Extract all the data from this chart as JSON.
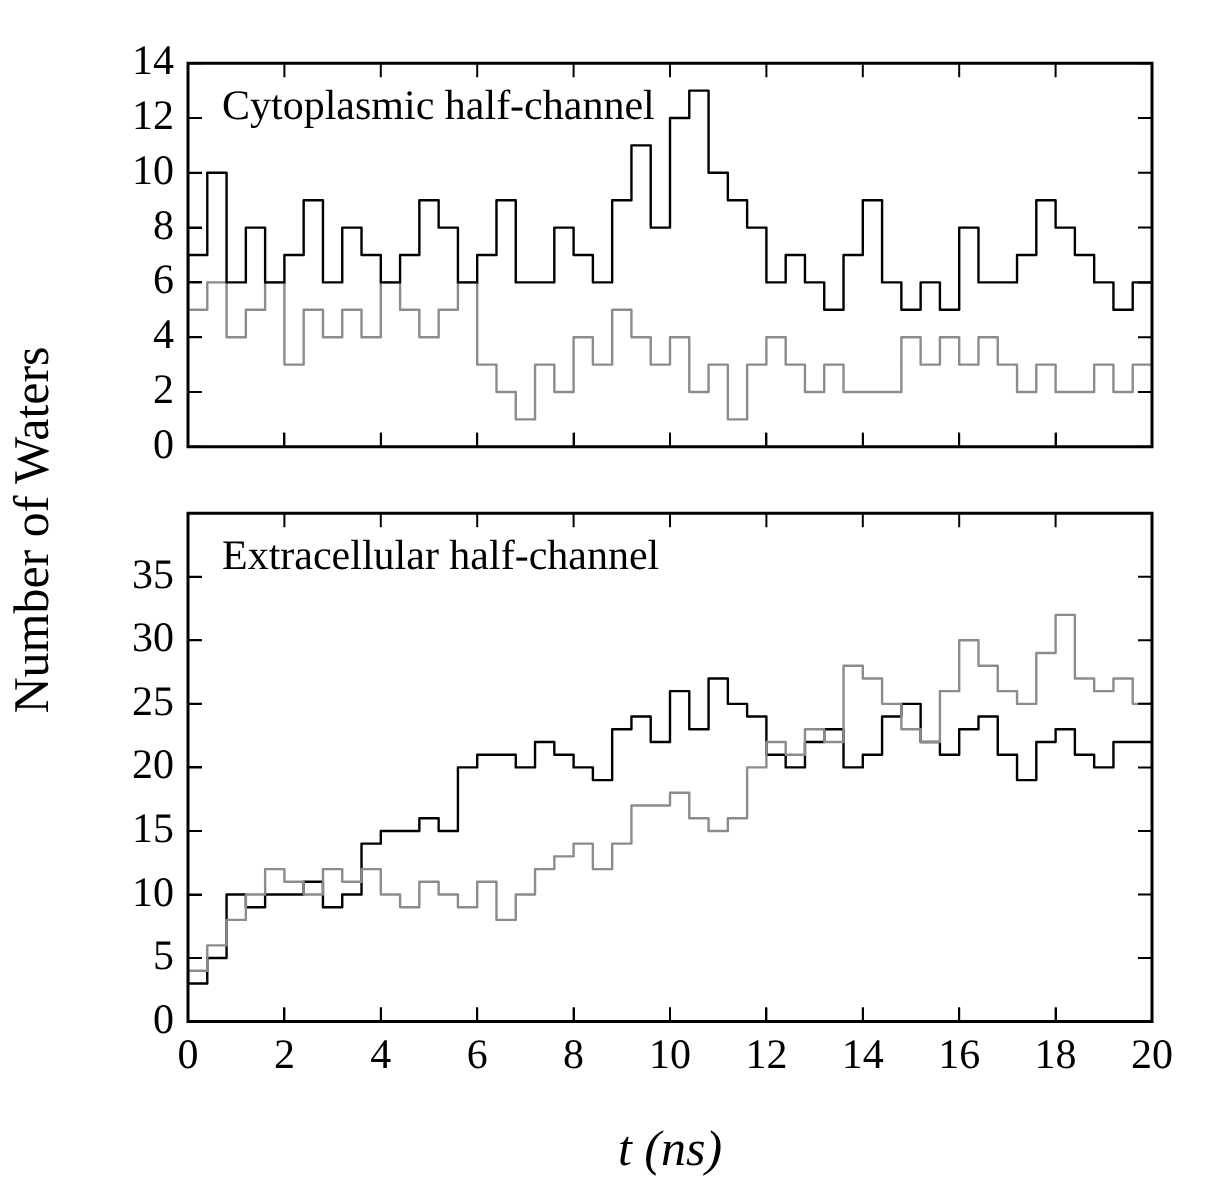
{
  "chart_data": [
    {
      "type": "step",
      "ylabel": "Number of Waters",
      "annotations": [
        "Cytoplasmic half-channel"
      ],
      "x": [
        0,
        0.4,
        0.8,
        1.2,
        1.6,
        2,
        2.4,
        2.8,
        3.2,
        3.6,
        4,
        4.4,
        4.8,
        5.2,
        5.6,
        6,
        6.4,
        6.8,
        7.2,
        7.6,
        8,
        8.4,
        8.8,
        9.2,
        9.6,
        10,
        10.4,
        10.8,
        11.2,
        11.6,
        12,
        12.4,
        12.8,
        13.2,
        13.6,
        14,
        14.4,
        14.8,
        15.2,
        15.6,
        16,
        16.4,
        16.8,
        17.2,
        17.6,
        18,
        18.4,
        18.8,
        19.2,
        19.6,
        20
      ],
      "series": [
        {
          "color": "#000000",
          "values": [
            6,
            7,
            10,
            6,
            8,
            6,
            7,
            9,
            6,
            8,
            7,
            6,
            7,
            9,
            8,
            6,
            7,
            9,
            6,
            6,
            8,
            7,
            6,
            9,
            11,
            8,
            12,
            13,
            10,
            9,
            8,
            6,
            7,
            6,
            5,
            7,
            9,
            6,
            5,
            6,
            5,
            8,
            6,
            6,
            7,
            9,
            8,
            7,
            6,
            5,
            6
          ]
        },
        {
          "color": "#8c8c8c",
          "values": [
            7,
            5,
            6,
            4,
            5,
            6,
            3,
            5,
            4,
            5,
            4,
            6,
            5,
            4,
            5,
            6,
            3,
            2,
            1,
            3,
            2,
            4,
            3,
            5,
            4,
            3,
            4,
            2,
            3,
            1,
            3,
            4,
            3,
            2,
            3,
            2,
            2,
            2,
            4,
            3,
            4,
            3,
            4,
            3,
            2,
            3,
            2,
            2,
            3,
            2,
            3
          ]
        }
      ],
      "xlim": [
        0,
        20
      ],
      "xticks": [
        0,
        2,
        4,
        6,
        8,
        10,
        12,
        14,
        16,
        18,
        20
      ],
      "ylim": [
        0,
        14
      ],
      "yticks": [
        0,
        2,
        4,
        6,
        8,
        10,
        12,
        14
      ],
      "tick_labels": "y",
      "grid": false,
      "legend": false
    },
    {
      "type": "step",
      "xlabel": "t (ns)",
      "annotations": [
        "Extracellular half-channel"
      ],
      "x": [
        0,
        0.4,
        0.8,
        1.2,
        1.6,
        2,
        2.4,
        2.8,
        3.2,
        3.6,
        4,
        4.4,
        4.8,
        5.2,
        5.6,
        6,
        6.4,
        6.8,
        7.2,
        7.6,
        8,
        8.4,
        8.8,
        9.2,
        9.6,
        10,
        10.4,
        10.8,
        11.2,
        11.6,
        12,
        12.4,
        12.8,
        13.2,
        13.6,
        14,
        14.4,
        14.8,
        15.2,
        15.6,
        16,
        16.4,
        16.8,
        17.2,
        17.6,
        18,
        18.4,
        18.8,
        19.2,
        19.6,
        20
      ],
      "series": [
        {
          "color": "#8c8c8c",
          "values": [
            4,
            4,
            6,
            8,
            10,
            12,
            11,
            10,
            12,
            11,
            12,
            10,
            9,
            11,
            10,
            9,
            11,
            8,
            10,
            12,
            13,
            14,
            12,
            14,
            17,
            17,
            18,
            16,
            15,
            16,
            20,
            22,
            21,
            23,
            22,
            28,
            27,
            25,
            23,
            22,
            26,
            30,
            28,
            26,
            25,
            29,
            32,
            27,
            26,
            27,
            25
          ]
        },
        {
          "color": "#000000",
          "values": [
            4,
            3,
            5,
            10,
            9,
            10,
            10,
            11,
            9,
            10,
            14,
            15,
            15,
            16,
            15,
            20,
            21,
            21,
            20,
            22,
            21,
            20,
            19,
            23,
            24,
            22,
            26,
            23,
            27,
            25,
            24,
            21,
            20,
            22,
            23,
            20,
            21,
            24,
            25,
            22,
            21,
            23,
            24,
            21,
            19,
            22,
            23,
            21,
            20,
            22,
            22
          ]
        }
      ],
      "xlim": [
        0,
        20
      ],
      "xticks": [
        0,
        2,
        4,
        6,
        8,
        10,
        12,
        14,
        16,
        18,
        20
      ],
      "ylim": [
        0,
        40
      ],
      "yticks": [
        0,
        5,
        10,
        15,
        20,
        25,
        30,
        35
      ],
      "grid": false,
      "legend": false
    }
  ]
}
